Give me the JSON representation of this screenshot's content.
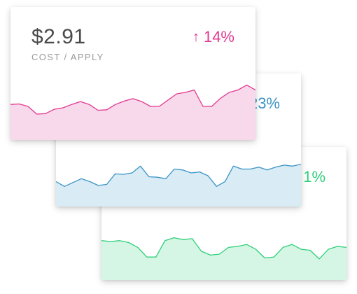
{
  "cards": [
    {
      "price": "$2.91",
      "caption": "COST / APPLY",
      "change_arrow": "↑",
      "change_value": "14%",
      "color": "#e0388f",
      "fill": "#f8d9ec",
      "series": [
        62,
        63,
        58,
        42,
        43,
        52,
        55,
        62,
        68,
        62,
        50,
        51,
        62,
        69,
        74,
        68,
        58,
        58,
        71,
        84,
        87,
        92,
        58,
        58,
        75,
        87,
        92,
        102,
        92
      ]
    },
    {
      "change_value": "23%",
      "color": "#3a93c5",
      "fill": "#d9ebf5",
      "series": [
        40,
        30,
        38,
        46,
        40,
        32,
        34,
        56,
        55,
        58,
        72,
        50,
        49,
        46,
        66,
        64,
        58,
        60,
        52,
        30,
        40,
        72,
        66,
        66,
        70,
        64,
        70,
        74,
        72,
        76
      ]
    },
    {
      "change_value": "1%",
      "color": "#2fcf7a",
      "fill": "#d5f6e4",
      "series": [
        70,
        68,
        70,
        66,
        56,
        36,
        36,
        70,
        76,
        72,
        74,
        48,
        40,
        42,
        56,
        58,
        62,
        52,
        34,
        36,
        56,
        62,
        52,
        50,
        32,
        52,
        58,
        56
      ]
    }
  ]
}
